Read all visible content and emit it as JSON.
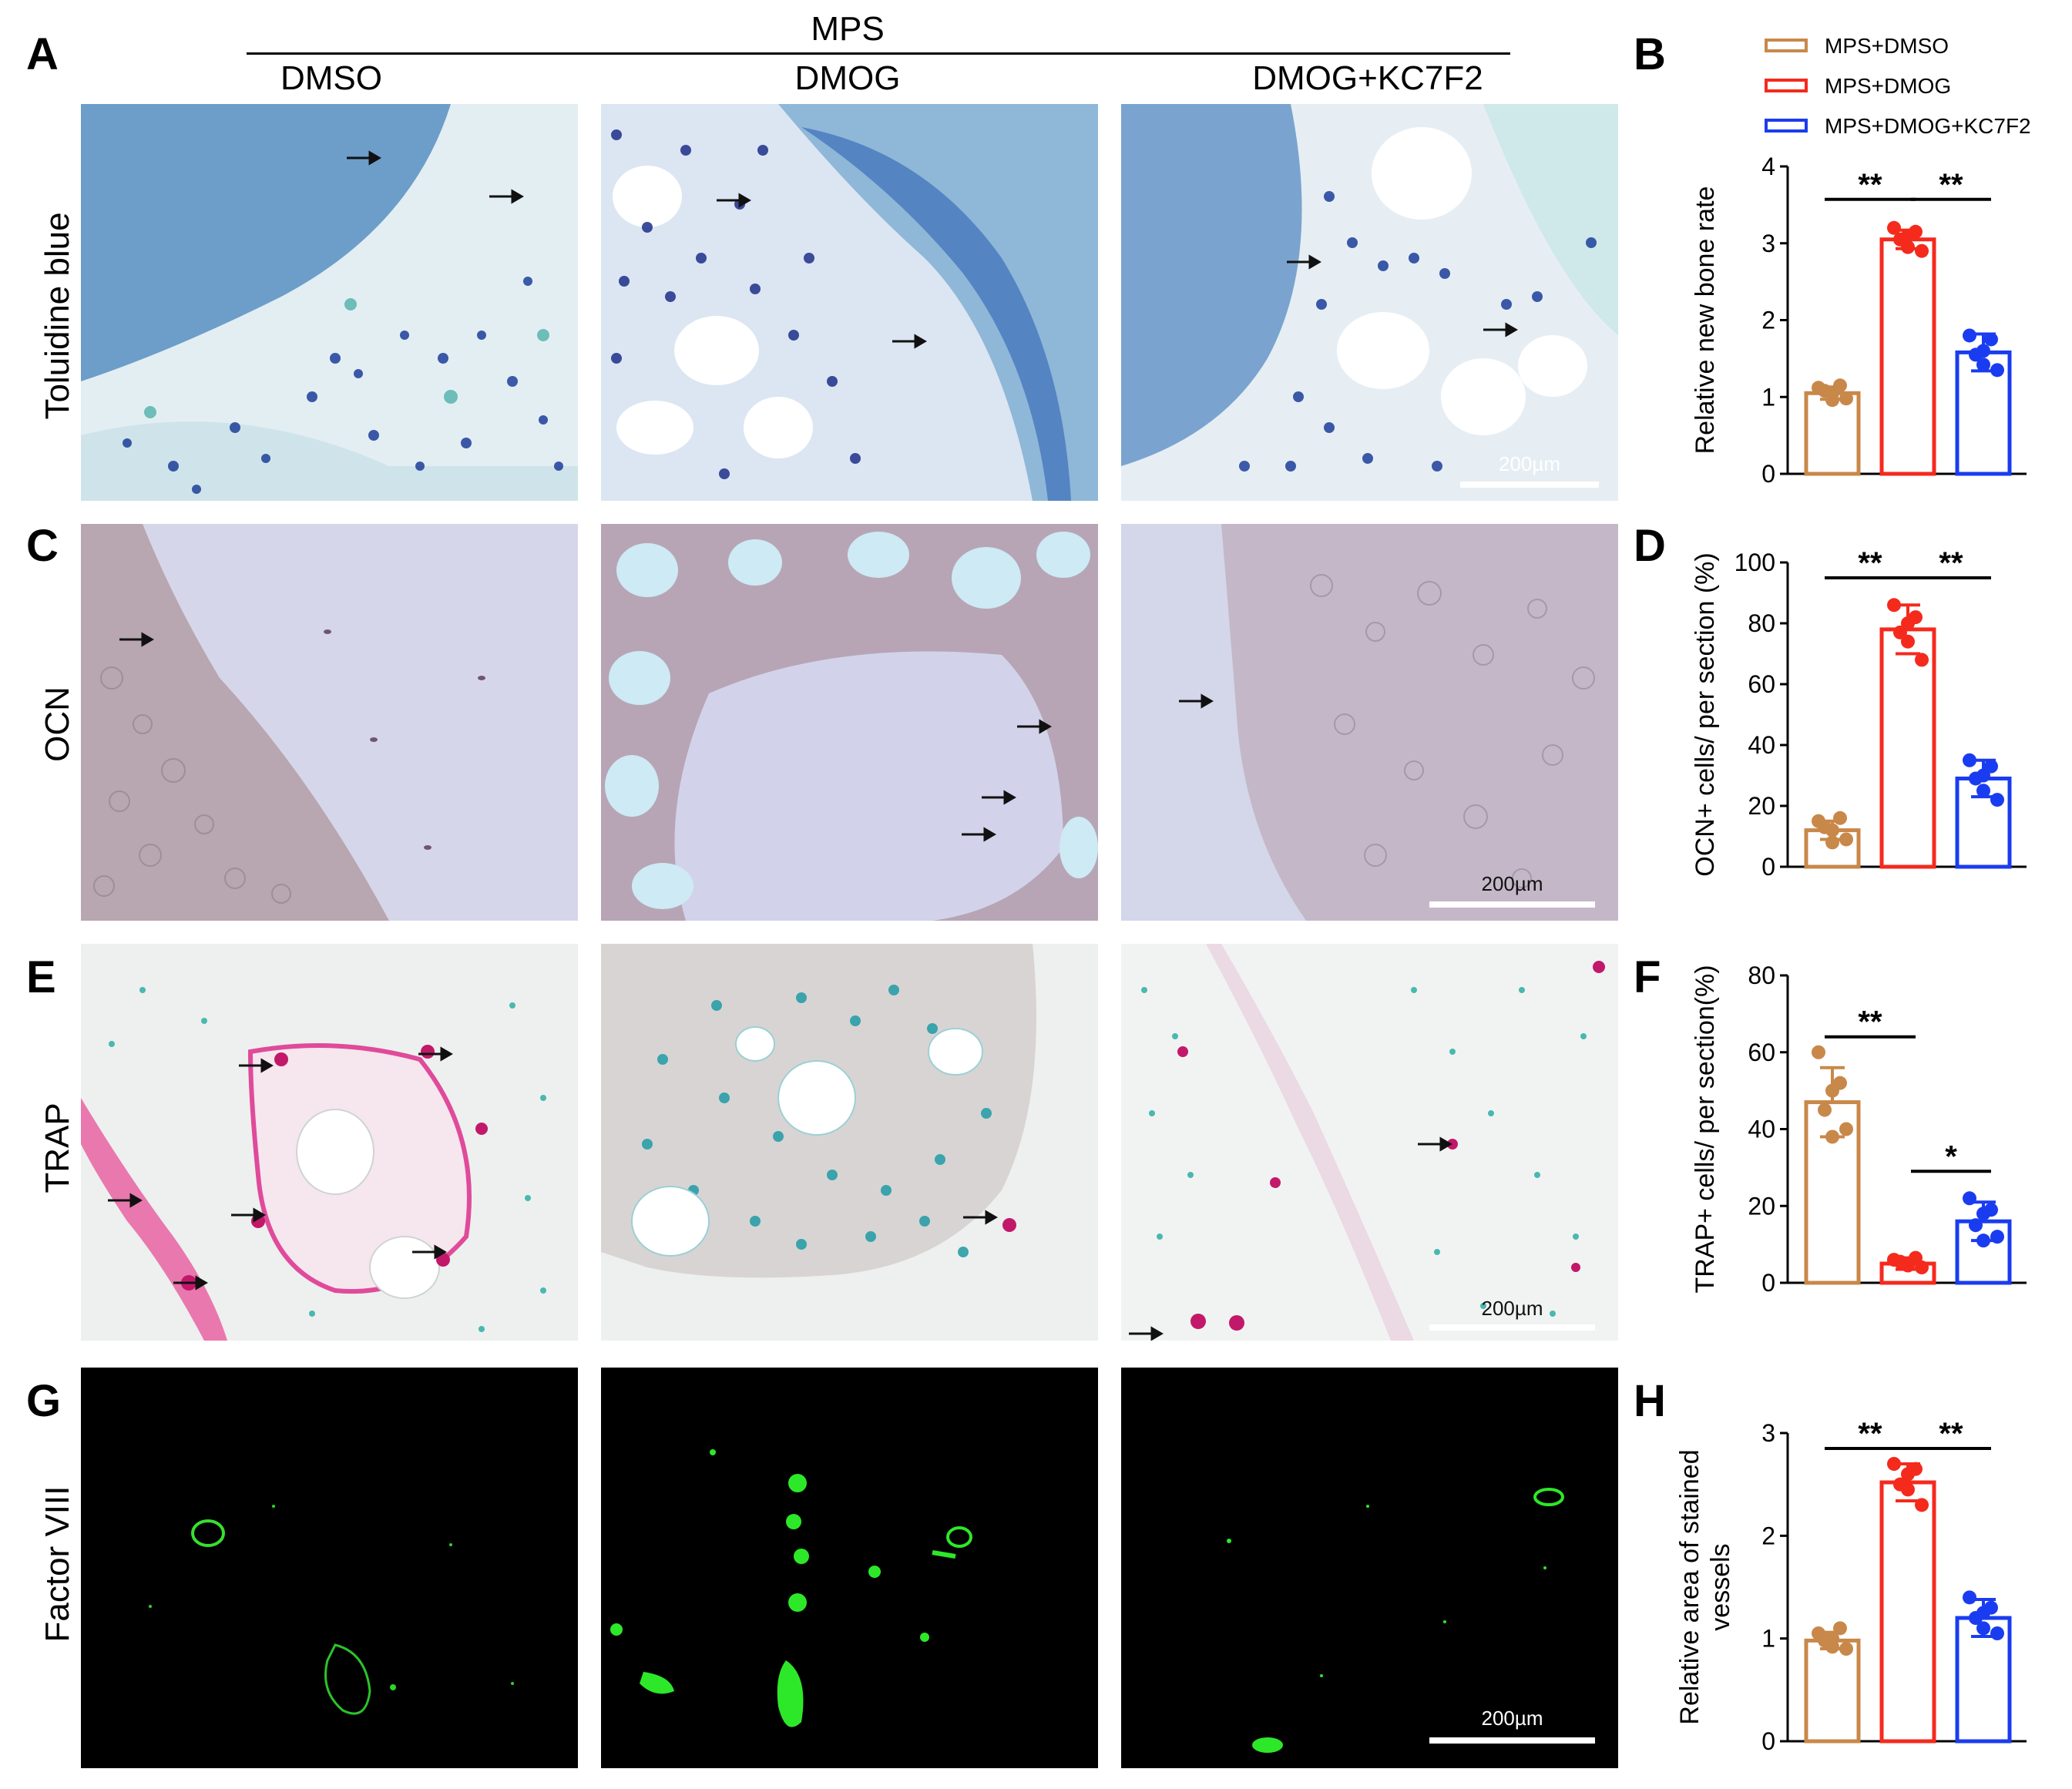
{
  "header": {
    "group_label": "MPS"
  },
  "columns": [
    {
      "label": "DMSO"
    },
    {
      "label": "DMOG"
    },
    {
      "label": "DMOG+KC7F2"
    }
  ],
  "rows": [
    {
      "letter": "A",
      "label": "Toluidine blue",
      "scale_text": "200µm"
    },
    {
      "letter": "C",
      "label": "OCN",
      "scale_text": "200µm"
    },
    {
      "letter": "E",
      "label": "TRAP",
      "scale_text": "200µm"
    },
    {
      "letter": "G",
      "label": "Factor VIII",
      "scale_text": "200µm"
    }
  ],
  "legend": {
    "entries": [
      {
        "label": "MPS+DMSO",
        "color": "#c8884a"
      },
      {
        "label": "MPS+DMOG",
        "color": "#f42a1d"
      },
      {
        "label": "MPS+DMOG+KC7F2",
        "color": "#1a3cf0"
      }
    ]
  },
  "chart_data": [
    {
      "letter": "B",
      "type": "bar",
      "title": "",
      "xlabel": "",
      "ylabel": "Relative new bone rate",
      "categories": [
        "MPS+DMSO",
        "MPS+DMOG",
        "MPS+DMOG+KC7F2"
      ],
      "ylim": [
        0,
        4
      ],
      "yticks": [
        "0",
        "1",
        "2",
        "3",
        "4"
      ],
      "values": [
        1.05,
        3.05,
        1.58
      ],
      "errors": [
        0.08,
        0.12,
        0.24
      ],
      "points": [
        [
          1.12,
          1.05,
          0.98,
          1.08,
          1.15,
          0.96
        ],
        [
          3.2,
          3.1,
          2.9,
          3.05,
          3.15,
          2.95
        ],
        [
          1.8,
          1.6,
          1.35,
          1.55,
          1.75,
          1.42
        ]
      ],
      "colors": [
        "#c8884a",
        "#f42a1d",
        "#1a3cf0"
      ],
      "significance": [
        {
          "from": 0,
          "to": 1,
          "label": "**"
        },
        {
          "from": 1,
          "to": 2,
          "label": "**"
        }
      ]
    },
    {
      "letter": "D",
      "type": "bar",
      "title": "",
      "xlabel": "",
      "ylabel": "OCN+ cells/ per section (%)",
      "categories": [
        "MPS+DMSO",
        "MPS+DMOG",
        "MPS+DMOG+KC7F2"
      ],
      "ylim": [
        0,
        100
      ],
      "yticks": [
        "0",
        "20",
        "40",
        "60",
        "80",
        "100"
      ],
      "values": [
        12,
        78,
        29
      ],
      "errors": [
        3,
        8,
        6
      ],
      "points": [
        [
          15,
          12,
          9,
          13,
          16,
          8
        ],
        [
          86,
          80,
          68,
          77,
          82,
          74
        ],
        [
          35,
          30,
          22,
          29,
          33,
          25
        ]
      ],
      "colors": [
        "#c8884a",
        "#f42a1d",
        "#1a3cf0"
      ],
      "significance": [
        {
          "from": 0,
          "to": 1,
          "label": "**"
        },
        {
          "from": 1,
          "to": 2,
          "label": "**"
        }
      ]
    },
    {
      "letter": "F",
      "type": "bar",
      "title": "",
      "xlabel": "",
      "ylabel": "TRAP+ cells/ per section(%)",
      "categories": [
        "MPS+DMSO",
        "MPS+DMOG",
        "MPS+DMOG+KC7F2"
      ],
      "ylim": [
        0,
        80
      ],
      "yticks": [
        "0",
        "20",
        "40",
        "60",
        "80"
      ],
      "values": [
        47,
        5,
        16
      ],
      "errors": [
        9,
        1.5,
        5
      ],
      "points": [
        [
          60,
          50,
          40,
          45,
          52,
          38
        ],
        [
          6,
          5,
          4,
          5.5,
          6.5,
          4.5
        ],
        [
          22,
          18,
          12,
          15,
          19,
          11
        ]
      ],
      "colors": [
        "#c8884a",
        "#f42a1d",
        "#1a3cf0"
      ],
      "significance": [
        {
          "from": 0,
          "to": 1,
          "label": "**"
        },
        {
          "from": 1,
          "to": 2,
          "label": "*"
        }
      ]
    },
    {
      "letter": "H",
      "type": "bar",
      "title": "",
      "xlabel": "",
      "ylabel": "Relative area of stained vessels",
      "ylabel_lines": [
        "Relative area of stained",
        "vessels"
      ],
      "categories": [
        "MPS+DMSO",
        "MPS+DMOG",
        "MPS+DMOG+KC7F2"
      ],
      "ylim": [
        0,
        3
      ],
      "yticks": [
        "0",
        "1",
        "2",
        "3"
      ],
      "values": [
        0.98,
        2.52,
        1.2
      ],
      "errors": [
        0.08,
        0.18,
        0.18
      ],
      "points": [
        [
          1.05,
          1.0,
          0.9,
          0.98,
          1.1,
          0.92
        ],
        [
          2.7,
          2.6,
          2.3,
          2.5,
          2.65,
          2.45
        ],
        [
          1.4,
          1.25,
          1.05,
          1.2,
          1.3,
          1.1
        ]
      ],
      "colors": [
        "#c8884a",
        "#f42a1d",
        "#1a3cf0"
      ],
      "significance": [
        {
          "from": 0,
          "to": 1,
          "label": "**"
        },
        {
          "from": 1,
          "to": 2,
          "label": "**"
        }
      ]
    }
  ]
}
